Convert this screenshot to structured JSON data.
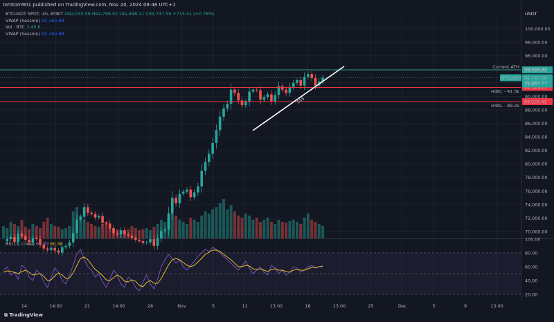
{
  "header": {
    "publisher": "tomtom901 published on TradingView.com, Nov 20, 2024 08:48 UTC+1"
  },
  "legend": {
    "symbol": "BTCUSDT SPOT, 4h, BYBIT",
    "ohlc": {
      "o": "O92,032.08",
      "h": "H92,799.02",
      "l": "L91,848.11",
      "c": "C92,747.59",
      "chg": "+715.51 (+0.78%)"
    },
    "vwap1": {
      "label": "VWAP (Session)",
      "value": "92,160.98"
    },
    "vol": {
      "label": "Vol · BTC",
      "value": "3.45 K"
    },
    "vwap2": {
      "label": "VWAP (Session)",
      "value": "92,160.98"
    }
  },
  "rsi_legend": {
    "label": "RSI (7, close)",
    "v1": "61.29",
    "v2": "60.38"
  },
  "unit": "USDT",
  "footer": {
    "logo": "TradingView"
  },
  "colors": {
    "bg": "#131722",
    "up": "#26a69a",
    "down": "#ef5350",
    "ath": "#26a69a",
    "h4kl": "#f23645",
    "rsi": "#7e57c2",
    "rsi_ma": "#e6c229"
  },
  "chart_data": [
    {
      "type": "candlestick",
      "price_axis": {
        "ylim": [
          69000,
          102000
        ],
        "ticks": [
          "100,000.00",
          "98,000.00",
          "96,000.00",
          "94,000.00",
          "92,000.00",
          "90,000.00",
          "88,000.00",
          "86,000.00",
          "84,000.00",
          "82,000.00",
          "80,000.00",
          "78,000.00",
          "76,000.00",
          "74,000.00",
          "72,000.00",
          "70,000.00"
        ]
      },
      "time_axis": [
        "14",
        "14:00",
        "21",
        "14:00",
        "28",
        "Nov",
        "5",
        "11",
        "13:00",
        "18",
        "13:00",
        "25",
        "Dec",
        "5",
        "9",
        "13:00"
      ],
      "horizontal_levels": [
        {
          "label": "Current ATH",
          "price": 93920.95,
          "tag": "93,920.95",
          "color": "#26a69a"
        },
        {
          "label": "H4KL - 91.3k",
          "price": 91319.77,
          "tag": "91,319.77",
          "color": "#f23645"
        },
        {
          "label": "H4KL - 89.2k",
          "price": 89226.42,
          "tag": "89,226.42",
          "color": "#f23645"
        }
      ],
      "last_price": {
        "symbol": "BTCUSDT",
        "value": "92,747.59",
        "countdown": "11:40"
      },
      "annotation": {
        "text": "$$$"
      },
      "price_path": [
        68600,
        68900,
        69200,
        68500,
        69700,
        69300,
        68800,
        68400,
        69000,
        68900,
        68100,
        67500,
        67300,
        67600,
        67200,
        66900,
        67700,
        67900,
        68400,
        69800,
        71800,
        72200,
        73600,
        72800,
        72600,
        72100,
        72300,
        71300,
        71200,
        70500,
        69800,
        69600,
        70200,
        69600,
        69400,
        69100,
        68800,
        68600,
        68300,
        68400,
        68900,
        67900,
        69000,
        70100,
        70300,
        72700,
        75000,
        74200,
        75600,
        75900,
        76200,
        75100,
        75800,
        76700,
        79000,
        80300,
        81500,
        83100,
        85000,
        87000,
        88200,
        88900,
        91000,
        90500,
        89400,
        88700,
        89200,
        90700,
        91000,
        90900,
        89500,
        89900,
        90300,
        89300,
        90200,
        91500,
        91000,
        90500,
        91400,
        92000,
        92400,
        91600,
        92900,
        93300,
        92700,
        91600,
        92200,
        92750
      ]
    },
    {
      "type": "line",
      "title": "RSI (7, close)",
      "ylim": [
        10,
        100
      ],
      "ticks": [
        "100.00",
        "80.00",
        "60.00",
        "40.00",
        "20.00"
      ],
      "series": [
        {
          "name": "RSI",
          "values": [
            55,
            60,
            48,
            52,
            42,
            62,
            58,
            45,
            40,
            55,
            50,
            38,
            30,
            45,
            58,
            52,
            40,
            35,
            48,
            62,
            78,
            85,
            70,
            60,
            55,
            45,
            50,
            38,
            30,
            42,
            55,
            48,
            35,
            30,
            45,
            40,
            30,
            25,
            38,
            48,
            35,
            28,
            42,
            60,
            70,
            78,
            72,
            65,
            70,
            60,
            55,
            62,
            68,
            75,
            80,
            85,
            82,
            88,
            85,
            80,
            75,
            70,
            65,
            60,
            55,
            62,
            68,
            58,
            50,
            55,
            60,
            52,
            48,
            62,
            58,
            50,
            55,
            48,
            52,
            60,
            58,
            52,
            55,
            60,
            62,
            58,
            60,
            61.29
          ]
        },
        {
          "name": "RSI MA",
          "values": [
            52,
            54,
            53,
            52,
            50,
            53,
            55,
            52,
            48,
            49,
            50,
            46,
            40,
            41,
            47,
            51,
            48,
            43,
            44,
            51,
            62,
            72,
            74,
            70,
            63,
            56,
            52,
            47,
            41,
            40,
            44,
            48,
            45,
            39,
            38,
            41,
            39,
            33,
            31,
            37,
            40,
            36,
            36,
            43,
            53,
            63,
            70,
            72,
            70,
            66,
            62,
            60,
            62,
            67,
            72,
            78,
            81,
            84,
            84,
            82,
            78,
            74,
            70,
            65,
            60,
            60,
            62,
            61,
            57,
            56,
            57,
            55,
            53,
            56,
            57,
            55,
            55,
            53,
            52,
            55,
            56,
            55,
            55,
            57,
            59,
            59,
            60,
            60.38
          ]
        }
      ]
    },
    {
      "type": "bar",
      "title": "Volume",
      "values": [
        0.3,
        0.25,
        0.4,
        0.35,
        0.3,
        0.45,
        0.28,
        0.22,
        0.35,
        0.3,
        0.25,
        0.4,
        0.5,
        0.35,
        0.3,
        0.28,
        0.22,
        0.25,
        0.3,
        0.65,
        0.75,
        0.55,
        0.45,
        0.4,
        0.35,
        0.3,
        0.28,
        0.35,
        0.4,
        0.3,
        0.25,
        0.22,
        0.2,
        0.18,
        0.22,
        0.3,
        0.25,
        0.2,
        0.22,
        0.25,
        0.2,
        0.28,
        0.35,
        0.45,
        0.4,
        0.5,
        0.6,
        0.55,
        0.45,
        0.4,
        0.35,
        0.5,
        0.45,
        0.4,
        0.55,
        0.65,
        0.6,
        0.7,
        0.75,
        0.85,
        0.95,
        0.7,
        0.8,
        0.65,
        0.55,
        0.5,
        0.6,
        0.55,
        0.45,
        0.5,
        0.4,
        0.45,
        0.5,
        0.4,
        0.35,
        0.45,
        0.4,
        0.38,
        0.42,
        0.45,
        0.4,
        0.35,
        0.5,
        0.6,
        0.45,
        0.4,
        0.35,
        0.3
      ]
    }
  ]
}
